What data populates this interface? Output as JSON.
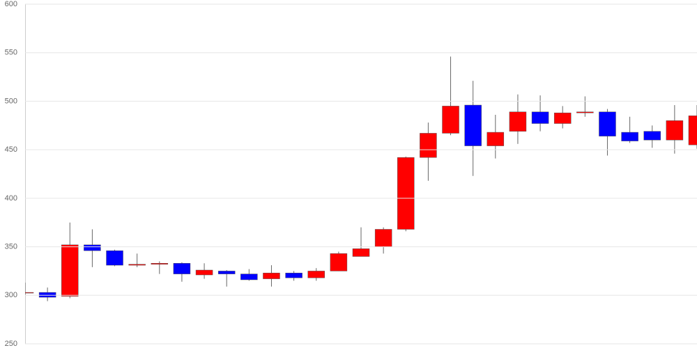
{
  "chart_data": {
    "type": "candlestick",
    "categories": [
      null,
      null,
      null,
      null,
      null,
      null,
      null,
      null,
      null,
      null,
      null,
      null,
      null,
      null,
      null,
      null,
      null,
      null,
      null,
      null,
      null,
      null,
      null,
      null,
      null,
      null,
      null,
      null,
      null,
      null,
      null
    ],
    "open": [
      303,
      303,
      299,
      352,
      346,
      331,
      332,
      333,
      321,
      325,
      322,
      317,
      323,
      318,
      325,
      340,
      350,
      368,
      442,
      467,
      496,
      454,
      469,
      489,
      477,
      488,
      489,
      468,
      469,
      460,
      455
    ],
    "high": [
      313,
      308,
      375,
      368,
      347,
      343,
      335,
      334,
      333,
      326,
      327,
      331,
      325,
      328,
      345,
      370,
      370,
      443,
      478,
      546,
      521,
      486,
      507,
      506,
      495,
      505,
      492,
      484,
      475,
      496,
      496
    ],
    "low": [
      300,
      294,
      297,
      329,
      330,
      329,
      322,
      314,
      317,
      309,
      315,
      309,
      315,
      315,
      325,
      340,
      343,
      366,
      418,
      465,
      423,
      441,
      456,
      469,
      472,
      484,
      444,
      457,
      452,
      446,
      451
    ],
    "close": [
      303,
      298,
      352,
      346,
      331,
      332,
      333,
      322,
      326,
      322,
      316,
      323,
      318,
      325,
      343,
      348,
      368,
      442,
      467,
      495,
      454,
      468,
      489,
      477,
      488,
      489,
      464,
      459,
      460,
      480,
      485
    ],
    "up_color": "#ff0000",
    "down_color": "#0000ff",
    "wick_color": "#666666",
    "ylim": [
      250,
      600
    ],
    "yticks": [
      250,
      300,
      350,
      400,
      450,
      500,
      550,
      600
    ],
    "grid": true
  }
}
